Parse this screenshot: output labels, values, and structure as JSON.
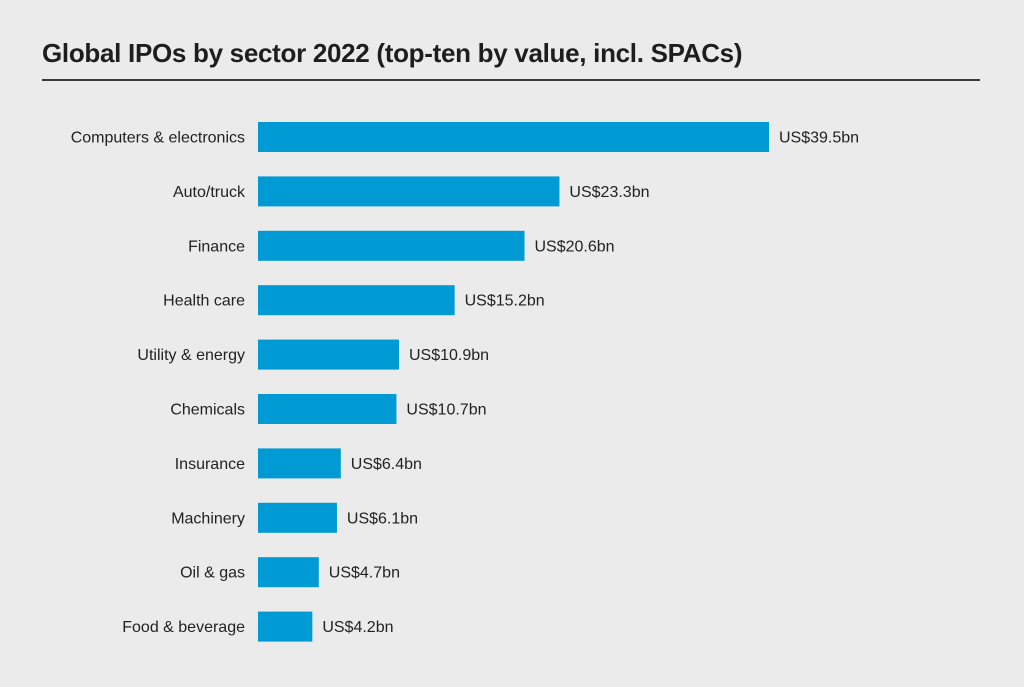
{
  "chart_data": {
    "type": "bar",
    "orientation": "horizontal",
    "title": "Global IPOs by sector 2022 (top-ten by value, incl. SPACs)",
    "categories": [
      "Computers & electronics",
      "Auto/truck",
      "Finance",
      "Health care",
      "Utility & energy",
      "Chemicals",
      "Insurance",
      "Machinery",
      "Oil & gas",
      "Food & beverage"
    ],
    "values": [
      39.5,
      23.3,
      20.6,
      15.2,
      10.9,
      10.7,
      6.4,
      6.1,
      4.7,
      4.2
    ],
    "data_labels": [
      "US$39.5bn",
      "US$23.3bn",
      "US$20.6bn",
      "US$15.2bn",
      "US$10.9bn",
      "US$10.7bn",
      "US$6.4bn",
      "US$6.1bn",
      "US$4.7bn",
      "US$4.2bn"
    ],
    "unit": "US$bn",
    "xlabel": "",
    "ylabel": "",
    "grid": false,
    "colors": {
      "bar": "#009ad5",
      "background": "#ebebeb",
      "text": "#222222"
    }
  }
}
